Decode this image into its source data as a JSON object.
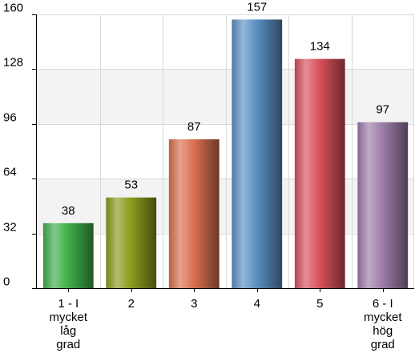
{
  "chart_data": {
    "type": "bar",
    "categories": [
      [
        "1 - I",
        "mycket",
        "låg",
        "grad"
      ],
      [
        "2"
      ],
      [
        "3"
      ],
      [
        "4"
      ],
      [
        "5"
      ],
      [
        "6 - I",
        "mycket",
        "hög",
        "grad"
      ]
    ],
    "values": [
      38,
      53,
      87,
      157,
      134,
      97
    ],
    "data_labels": [
      "38",
      "53",
      "87",
      "157",
      "134",
      "97"
    ],
    "y_ticks": [
      0,
      32,
      64,
      96,
      128,
      160
    ],
    "y_tick_labels": [
      "0",
      "32",
      "64",
      "96",
      "128",
      "160"
    ],
    "ylim": [
      0,
      160
    ],
    "grid": true,
    "title": "",
    "xlabel": "",
    "ylabel": "",
    "bar_colors": [
      "#3fae49",
      "#8c9a1c",
      "#d8704f",
      "#5b8ec2",
      "#d7505a",
      "#9c7ca8"
    ],
    "band_color": "#f3f3f3",
    "grid_color": "#d9d9d9",
    "axis_color": "#000000"
  }
}
